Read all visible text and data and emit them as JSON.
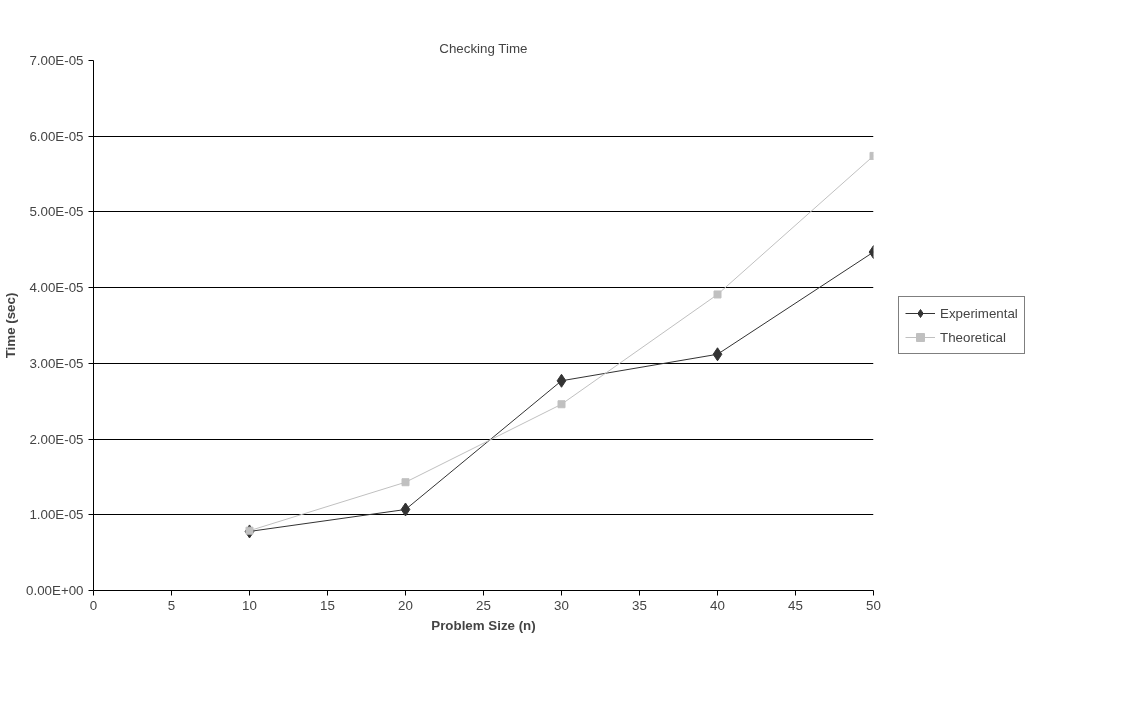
{
  "chart_data": {
    "type": "line",
    "title": "Checking Time",
    "xlabel": "Problem Size (n)",
    "ylabel": "Time (sec)",
    "x": [
      10,
      20,
      30,
      40,
      50
    ],
    "series": [
      {
        "name": "Experimental",
        "color": "#333333",
        "marker": "diamond",
        "values": [
          7.8e-06,
          1.07e-05,
          2.77e-05,
          3.12e-05,
          4.47e-05
        ]
      },
      {
        "name": "Theoretical",
        "color": "#c0c0c0",
        "marker": "square",
        "values": [
          7.9e-06,
          1.43e-05,
          2.46e-05,
          3.91e-05,
          5.74e-05
        ]
      }
    ],
    "xlim": [
      0,
      50
    ],
    "xticks": [
      0,
      5,
      10,
      15,
      20,
      25,
      30,
      35,
      40,
      45,
      50
    ],
    "ylim": [
      0,
      7e-05
    ],
    "yticks": [
      {
        "value": 0,
        "label": "0.00E+00"
      },
      {
        "value": 1e-05,
        "label": "1.00E-05"
      },
      {
        "value": 2e-05,
        "label": "2.00E-05"
      },
      {
        "value": 3e-05,
        "label": "3.00E-05"
      },
      {
        "value": 4e-05,
        "label": "4.00E-05"
      },
      {
        "value": 5e-05,
        "label": "5.00E-05"
      },
      {
        "value": 6e-05,
        "label": "6.00E-05"
      },
      {
        "value": 7e-05,
        "label": "7.00E-05"
      }
    ],
    "grid": "y",
    "legend": "right",
    "line_style": "solid"
  }
}
